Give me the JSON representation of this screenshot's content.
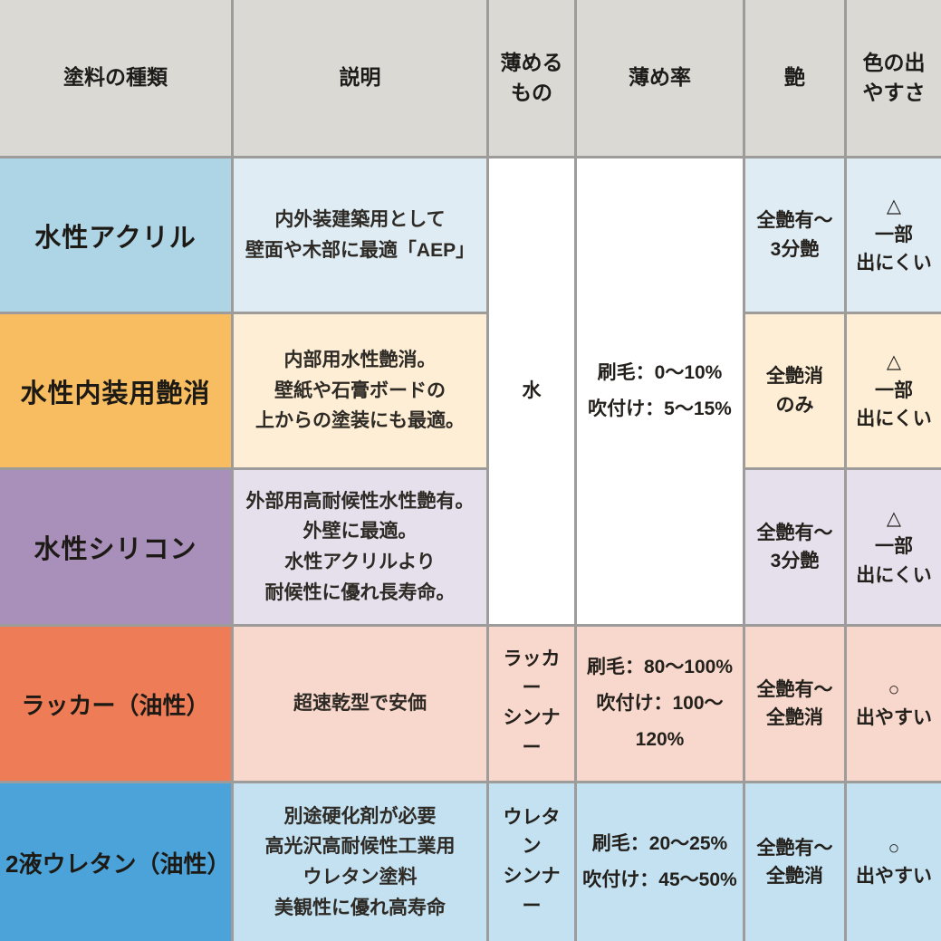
{
  "table": {
    "grid_color": "#9e9c9a",
    "header": {
      "bg": "#dbd9d3",
      "paint_type": "塗料の種類",
      "description": "説明",
      "thinner": "薄める\nもの",
      "dilution_ratio": "薄め率",
      "gloss": "艶",
      "color_ease": "色の出\nやすさ"
    },
    "merged_water": {
      "bg": "#ffffff",
      "thinner": "水",
      "dilution_ratio": "刷毛：0〜10%\n吹付け：5〜15%"
    },
    "rows": [
      {
        "paint_type": "水性アクリル",
        "description": "内外装建築用として\n壁面や木部に最適「AEP」",
        "gloss": "全艶有〜\n3分艶",
        "color_ease": "△\n一部\n出にくい",
        "key_bg": "#aed5e6",
        "light_bg": "#dfecf4"
      },
      {
        "paint_type": "水性内装用艶消",
        "description": "内部用水性艶消。\n壁紙や石膏ボードの\n上からの塗装にも最適。",
        "gloss": "全艶消\nのみ",
        "color_ease": "△\n一部\n出にくい",
        "key_bg": "#f7bd60",
        "light_bg": "#fdeed5"
      },
      {
        "paint_type": "水性シリコン",
        "description": "外部用高耐候性水性艶有。\n外壁に最適。\n水性アクリルより\n耐候性に優れ長寿命。",
        "gloss": "全艶有〜\n3分艶",
        "color_ease": "△\n一部\n出にくい",
        "key_bg": "#a890ba",
        "light_bg": "#e6e0ec"
      },
      {
        "paint_type": "ラッカー（油性）",
        "description": "超速乾型で安価",
        "thinner": "ラッカー\nシンナー",
        "dilution_ratio": "刷毛：80〜100%\n吹付け：100〜120%",
        "gloss": "全艶有〜\n全艶消",
        "color_ease": "○\n出やすい",
        "key_bg": "#ed7c57",
        "light_bg": "#f8d8cc"
      },
      {
        "paint_type": "2液ウレタン（油性）",
        "description": "別途硬化剤が必要\n高光沢高耐候性工業用\nウレタン塗料\n美観性に優れ高寿命",
        "thinner": "ウレタン\nシンナー",
        "dilution_ratio": "刷毛：20〜25%\n吹付け：45〜50%",
        "gloss": "全艶有〜\n全艶消",
        "color_ease": "○\n出やすい",
        "key_bg": "#4ba3d9",
        "light_bg": "#c3e1f1"
      }
    ]
  },
  "chart_data": {
    "type": "table",
    "title": "塗料の種類比較表",
    "columns": [
      "塗料の種類",
      "説明",
      "薄めるもの",
      "薄め率",
      "艶",
      "色の出やすさ"
    ],
    "rows": [
      [
        "水性アクリル",
        "内外装建築用として壁面や木部に最適「AEP」",
        "水",
        "刷毛：0〜10% ／ 吹付け：5〜15%",
        "全艶有〜3分艶",
        "△ 一部出にくい"
      ],
      [
        "水性内装用艶消",
        "内部用水性艶消。壁紙や石膏ボードの上からの塗装にも最適。",
        "水",
        "刷毛：0〜10% ／ 吹付け：5〜15%",
        "全艶消のみ",
        "△ 一部出にくい"
      ],
      [
        "水性シリコン",
        "外部用高耐候性水性艶有。外壁に最適。水性アクリルより耐候性に優れ長寿命。",
        "水",
        "刷毛：0〜10% ／ 吹付け：5〜15%",
        "全艶有〜3分艶",
        "△ 一部出にくい"
      ],
      [
        "ラッカー（油性）",
        "超速乾型で安価",
        "ラッカーシンナー",
        "刷毛：80〜100% ／ 吹付け：100〜120%",
        "全艶有〜全艶消",
        "○ 出やすい"
      ],
      [
        "2液ウレタン（油性）",
        "別途硬化剤が必要。高光沢高耐候性工業用ウレタン塗料。美観性に優れ高寿命",
        "ウレタンシンナー",
        "刷毛：20〜25% ／ 吹付け：45〜50%",
        "全艶有〜全艶消",
        "○ 出やすい"
      ]
    ],
    "merged_cells_note": "rows 1-3 share 薄めるもの=水 and 薄め率=刷毛：0〜10%／吹付け：5〜15%",
    "layout": {
      "header_row": true,
      "grid": true
    }
  }
}
